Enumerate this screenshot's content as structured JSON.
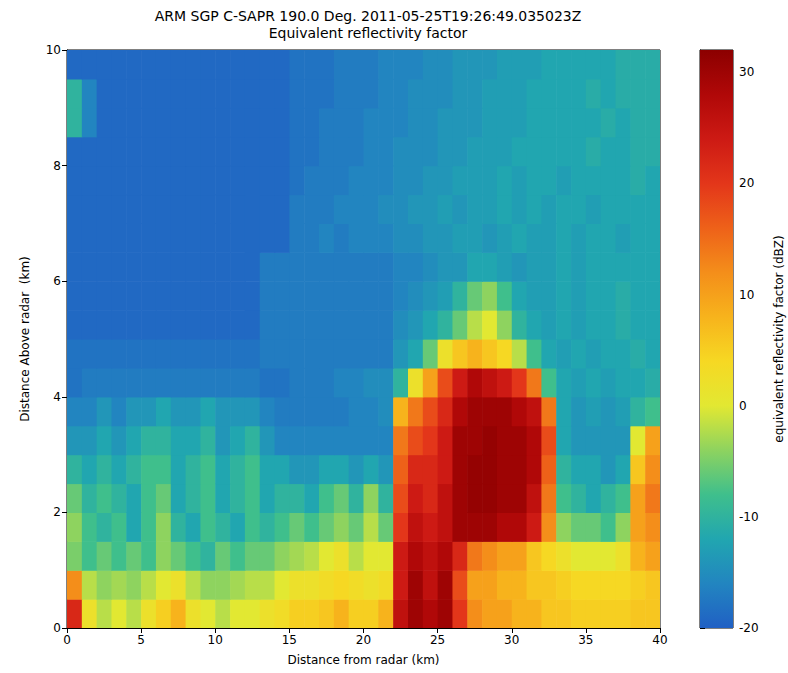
{
  "chart_data": {
    "type": "heatmap",
    "title": "ARM SGP C-SAPR 190.0 Deg. 2011-05-25T19:26:49.035023Z",
    "subtitle": "Equivalent reflectivity factor",
    "x_label": "Distance from radar (km)",
    "y_label": "Distance Above radar  (km)",
    "xlim": [
      0,
      40
    ],
    "xticks": [
      0,
      5,
      10,
      15,
      20,
      25,
      30,
      35,
      40
    ],
    "ylim": [
      0,
      10
    ],
    "yticks": [
      0,
      2,
      4,
      6,
      8,
      10
    ],
    "grid": false,
    "x_bins": [
      0,
      1,
      2,
      3,
      4,
      5,
      6,
      7,
      8,
      9,
      10,
      11,
      12,
      13,
      14,
      15,
      16,
      17,
      18,
      19,
      20,
      21,
      22,
      23,
      24,
      25,
      26,
      27,
      28,
      29,
      30,
      31,
      32,
      33,
      34,
      35,
      36,
      37,
      38,
      39,
      40
    ],
    "y_bins": [
      0,
      0.5,
      1,
      1.5,
      2,
      2.5,
      3,
      3.5,
      4,
      4.5,
      5,
      5.5,
      6,
      6.5,
      7,
      7.5,
      8,
      8.5,
      9,
      9.5,
      10
    ],
    "cells": [
      [
        22,
        2,
        -2,
        0,
        -2,
        2,
        5,
        8,
        2,
        0,
        -2,
        0,
        0,
        2,
        3,
        5,
        5,
        6,
        8,
        5,
        5,
        8,
        26,
        30,
        28,
        30,
        20,
        12,
        10,
        10,
        8,
        8,
        6,
        6,
        5,
        5,
        5,
        5,
        6,
        6
      ],
      [
        12,
        -2,
        -4,
        -3,
        -4,
        -2,
        0,
        2,
        -2,
        -4,
        -4,
        -3,
        -2,
        -2,
        0,
        2,
        2,
        3,
        4,
        3,
        2,
        3,
        24,
        30,
        26,
        30,
        18,
        10,
        10,
        8,
        8,
        6,
        6,
        5,
        4,
        4,
        4,
        4,
        5,
        6
      ],
      [
        -5,
        -8,
        -6,
        -8,
        -6,
        -8,
        -4,
        -6,
        -8,
        -10,
        -6,
        -8,
        -6,
        -6,
        -4,
        -3,
        -2,
        0,
        2,
        -2,
        0,
        0,
        24,
        28,
        26,
        28,
        22,
        14,
        12,
        10,
        10,
        6,
        4,
        2,
        0,
        0,
        0,
        2,
        8,
        10
      ],
      [
        -4,
        -8,
        -10,
        -8,
        -12,
        -8,
        -4,
        -10,
        -12,
        -8,
        -10,
        -12,
        -8,
        -10,
        -8,
        -6,
        -8,
        -6,
        -4,
        -6,
        -2,
        -6,
        20,
        26,
        24,
        26,
        30,
        30,
        30,
        28,
        28,
        24,
        12,
        -4,
        -6,
        -6,
        -8,
        -4,
        10,
        12
      ],
      [
        -6,
        -10,
        -8,
        -10,
        -12,
        -8,
        -6,
        -12,
        -10,
        -8,
        -12,
        -10,
        -8,
        -12,
        -10,
        -10,
        -12,
        -8,
        -6,
        -10,
        -4,
        -10,
        18,
        24,
        22,
        26,
        30,
        31,
        31,
        30,
        30,
        26,
        14,
        -8,
        -10,
        -12,
        -10,
        -8,
        10,
        14
      ],
      [
        -10,
        -12,
        -10,
        -12,
        -10,
        -8,
        -8,
        -12,
        -10,
        -8,
        -12,
        -10,
        -8,
        -12,
        -12,
        -14,
        -14,
        -12,
        -12,
        -14,
        -12,
        -14,
        16,
        22,
        22,
        24,
        30,
        31,
        31,
        30,
        30,
        28,
        16,
        -10,
        -12,
        -12,
        -14,
        -12,
        6,
        12
      ],
      [
        -14,
        -14,
        -12,
        -14,
        -12,
        -10,
        -10,
        -12,
        -12,
        -10,
        -14,
        -12,
        -10,
        -14,
        -16,
        -16,
        -16,
        -16,
        -16,
        -16,
        -16,
        -16,
        14,
        18,
        20,
        24,
        30,
        30,
        31,
        30,
        30,
        28,
        18,
        -12,
        -14,
        -14,
        -14,
        -14,
        0,
        10
      ],
      [
        -16,
        -16,
        -14,
        -16,
        -14,
        -14,
        -12,
        -14,
        -14,
        -12,
        -14,
        -14,
        -14,
        -16,
        -17,
        -17,
        -17,
        -17,
        -17,
        -16,
        -16,
        -15,
        8,
        14,
        18,
        22,
        28,
        30,
        30,
        30,
        28,
        26,
        14,
        -12,
        -14,
        -13,
        -14,
        -13,
        -10,
        -8
      ],
      [
        -18,
        -17,
        -17,
        -17,
        -17,
        -17,
        -17,
        -17,
        -17,
        -17,
        -17,
        -17,
        -17,
        -18,
        -18,
        -17,
        -17,
        -17,
        -16,
        -16,
        -15,
        -15,
        -10,
        2,
        10,
        18,
        24,
        28,
        26,
        24,
        20,
        14,
        -8,
        -12,
        -13,
        -12,
        -13,
        -12,
        -12,
        -11
      ],
      [
        -18,
        -18,
        -18,
        -18,
        -18,
        -18,
        -18,
        -18,
        -18,
        -18,
        -18,
        -18,
        -18,
        -17,
        -17,
        -17,
        -17,
        -17,
        -17,
        -17,
        -17,
        -17,
        -14,
        -12,
        -6,
        2,
        6,
        8,
        6,
        4,
        -2,
        -8,
        -12,
        -13,
        -12,
        -13,
        -12,
        -12,
        -11,
        -12
      ],
      [
        -19,
        -19,
        -19,
        -19,
        -19,
        -19,
        -19,
        -19,
        -19,
        -19,
        -19,
        -19,
        -19,
        -17,
        -17,
        -17,
        -17,
        -17,
        -17,
        -17,
        -17,
        -17,
        -15,
        -14,
        -12,
        -10,
        -6,
        -2,
        0,
        -4,
        -10,
        -12,
        -13,
        -12,
        -13,
        -12,
        -12,
        -11,
        -12,
        -12
      ],
      [
        -19,
        -19,
        -19,
        -19,
        -19,
        -19,
        -19,
        -19,
        -19,
        -19,
        -19,
        -19,
        -19,
        -17,
        -17,
        -17,
        -17,
        -17,
        -17,
        -17,
        -17,
        -17,
        -16,
        -15,
        -14,
        -13,
        -10,
        -6,
        -4,
        -8,
        -12,
        -13,
        -13,
        -12,
        -13,
        -12,
        -12,
        -11,
        -12,
        -12
      ],
      [
        -19,
        -19,
        -19,
        -19,
        -19,
        -19,
        -19,
        -19,
        -19,
        -19,
        -19,
        -19,
        -19,
        -17,
        -17,
        -17,
        -17,
        -17,
        -17,
        -17,
        -17,
        -17,
        -16,
        -16,
        -15,
        -14,
        -14,
        -12,
        -12,
        -13,
        -14,
        -13,
        -13,
        -12,
        -13,
        -12,
        -12,
        -12,
        -12,
        -12
      ],
      [
        -19,
        -19,
        -19,
        -19,
        -19,
        -19,
        -19,
        -19,
        -19,
        -19,
        -19,
        -19,
        -19,
        -19,
        -19,
        -17,
        -17,
        -16,
        -17,
        -16,
        -16,
        -16,
        -15,
        -15,
        -14,
        -14,
        -13,
        -13,
        -14,
        -13,
        -12,
        -13,
        -13,
        -12,
        -13,
        -12,
        -12,
        -13,
        -12,
        -12
      ],
      [
        -19,
        -19,
        -19,
        -19,
        -19,
        -19,
        -19,
        -19,
        -19,
        -19,
        -19,
        -19,
        -19,
        -19,
        -19,
        -17,
        -17,
        -17,
        -16,
        -16,
        -16,
        -15,
        -15,
        -14,
        -14,
        -13,
        -14,
        -13,
        -13,
        -12,
        -13,
        -12,
        -13,
        -12,
        -12,
        -13,
        -12,
        -12,
        -12,
        -12
      ],
      [
        -19,
        -19,
        -19,
        -19,
        -19,
        -19,
        -19,
        -19,
        -19,
        -19,
        -19,
        -19,
        -19,
        -19,
        -19,
        -18,
        -17,
        -17,
        -17,
        -16,
        -16,
        -16,
        -15,
        -15,
        -14,
        -14,
        -13,
        -13,
        -13,
        -12,
        -13,
        -12,
        -12,
        -13,
        -12,
        -12,
        -12,
        -12,
        -11,
        -12
      ],
      [
        -19,
        -19,
        -19,
        -19,
        -19,
        -19,
        -19,
        -19,
        -19,
        -19,
        -19,
        -19,
        -19,
        -19,
        -19,
        -18,
        -18,
        -17,
        -17,
        -17,
        -16,
        -16,
        -15,
        -15,
        -15,
        -14,
        -14,
        -13,
        -13,
        -13,
        -12,
        -12,
        -12,
        -12,
        -12,
        -11,
        -12,
        -12,
        -11,
        -11
      ],
      [
        -10,
        -16,
        -19,
        -19,
        -19,
        -19,
        -19,
        -19,
        -19,
        -19,
        -19,
        -19,
        -19,
        -19,
        -19,
        -18,
        -18,
        -17,
        -17,
        -17,
        -16,
        -16,
        -16,
        -15,
        -15,
        -14,
        -14,
        -14,
        -13,
        -13,
        -13,
        -12,
        -12,
        -12,
        -12,
        -12,
        -11,
        -12,
        -11,
        -11
      ],
      [
        -10,
        -16,
        -19,
        -19,
        -19,
        -19,
        -19,
        -19,
        -19,
        -19,
        -19,
        -19,
        -19,
        -19,
        -19,
        -18,
        -18,
        -18,
        -17,
        -17,
        -17,
        -16,
        -16,
        -15,
        -15,
        -15,
        -14,
        -14,
        -13,
        -13,
        -13,
        -12,
        -12,
        -12,
        -12,
        -11,
        -12,
        -11,
        -11,
        -11
      ],
      [
        -19,
        -19,
        -19,
        -19,
        -19,
        -19,
        -19,
        -19,
        -19,
        -19,
        -19,
        -19,
        -19,
        -19,
        -19,
        -18,
        -18,
        -18,
        -17,
        -17,
        -17,
        -16,
        -16,
        -16,
        -15,
        -15,
        -14,
        -14,
        -14,
        -13,
        -13,
        -13,
        -12,
        -12,
        -12,
        -12,
        -12,
        -11,
        -11,
        -11
      ]
    ],
    "colorbar": {
      "label": "equivalent reflectivity factor (dBZ)",
      "lim": [
        -20,
        32
      ],
      "ticks": [
        -20,
        -10,
        0,
        10,
        20,
        30
      ],
      "colors": [
        "#2060c4",
        "#2285c0",
        "#21a6b0",
        "#3fbf8c",
        "#8ed35f",
        "#e2e832",
        "#f6d823",
        "#f7b31c",
        "#f48e1a",
        "#ee6119",
        "#e3361a",
        "#cd1a14",
        "#b00808",
        "#8c0000"
      ]
    }
  }
}
